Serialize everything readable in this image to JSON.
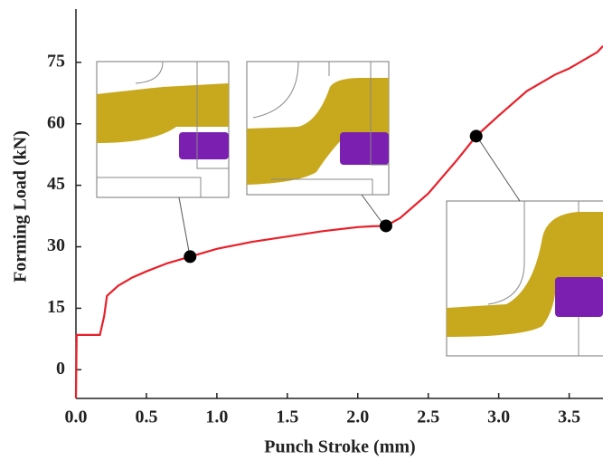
{
  "chart_data": {
    "type": "line",
    "x_label": "Punch Stroke (mm)",
    "y_label": "Forming Load (kN)",
    "x": [
      0,
      0.005,
      0.02,
      0.1,
      0.17,
      0.2,
      0.22,
      0.3,
      0.4,
      0.5,
      0.65,
      0.81,
      1.0,
      1.25,
      1.5,
      1.75,
      2.0,
      2.1,
      2.2,
      2.3,
      2.5,
      2.7,
      2.84,
      3.0,
      3.2,
      3.4,
      3.5,
      3.6,
      3.7,
      3.74
    ],
    "values": [
      -7,
      8.5,
      8.5,
      8.5,
      8.5,
      13,
      18,
      20.5,
      22.5,
      24,
      26,
      27.6,
      29.5,
      31.2,
      32.5,
      33.8,
      34.8,
      35,
      35.1,
      37,
      43,
      51,
      57,
      62,
      68,
      72,
      73.5,
      75.5,
      77.5,
      79
    ],
    "color": "#e8202a",
    "markers": {
      "x": [
        0.81,
        2.2,
        2.84
      ],
      "values": [
        27.6,
        35.1,
        57
      ],
      "color": "#000000"
    },
    "xlim": [
      0,
      3.74
    ],
    "ylim": [
      -7,
      88
    ],
    "xticks": [
      {
        "value": 0,
        "label": "0.0"
      },
      0.5,
      {
        "value": 1,
        "label": "1.0"
      },
      1.5,
      {
        "value": 2,
        "label": "2.0"
      },
      2.5,
      {
        "value": 3,
        "label": "3.0"
      },
      3.5
    ],
    "yticks": [
      0,
      15,
      30,
      45,
      60,
      75
    ]
  }
}
